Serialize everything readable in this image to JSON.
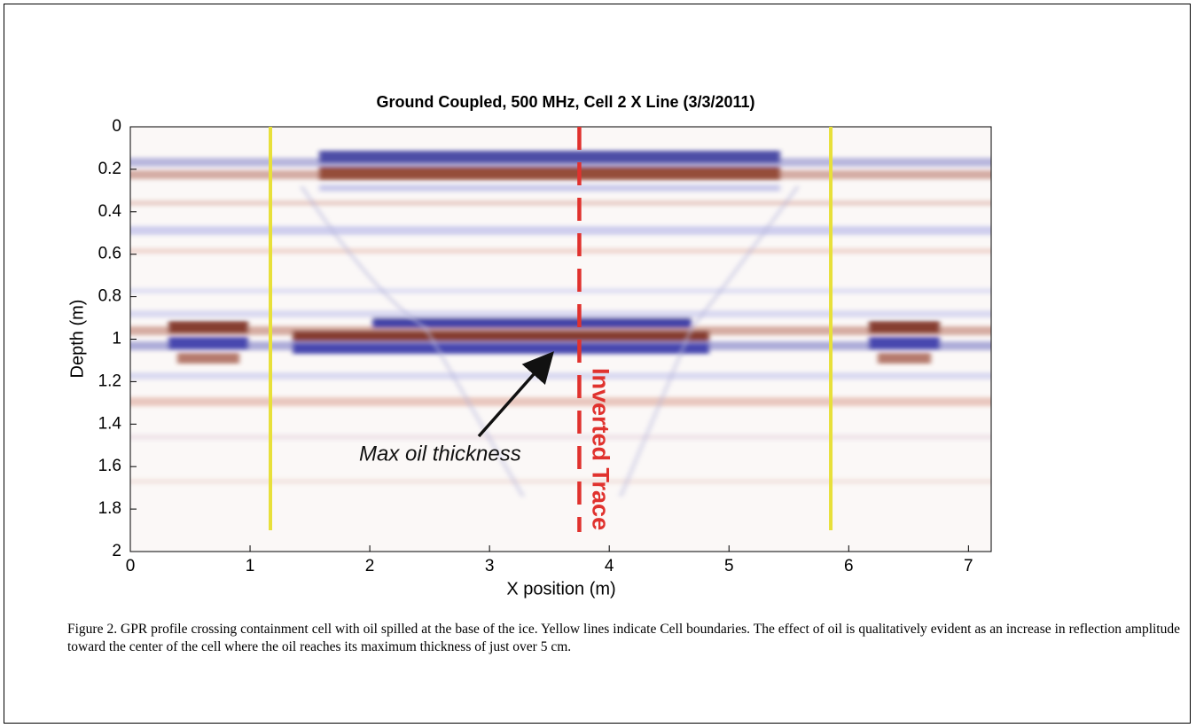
{
  "chart_data": {
    "type": "radargram",
    "title": "Ground Coupled, 500 MHz, Cell 2 X Line (3/3/2011)",
    "x_label": "X position (m)",
    "y_label": "Depth (m)",
    "xlim": [
      0,
      7.19
    ],
    "ylim": [
      0,
      2
    ],
    "y_inverted": true,
    "xticks": [
      0,
      1,
      2,
      3,
      4,
      5,
      6,
      7
    ],
    "yticks": [
      0,
      0.2,
      0.4,
      0.6,
      0.8,
      1,
      1.2,
      1.4,
      1.6,
      1.8,
      2
    ],
    "boundary_lines": {
      "color": "#e8e03a",
      "x": [
        1.17,
        5.85
      ],
      "depth_end": 1.9
    },
    "inverted_trace": {
      "label": "Inverted Trace",
      "color": "#e0322e",
      "x": 3.75
    },
    "annotation": "Max oil thickness"
  },
  "caption": "Figure 2.  GPR profile crossing containment cell with oil spilled at the base of the ice.  Yellow lines indicate Cell boundaries.  The effect of oil is qualitatively evident as an increase in reflection amplitude toward the center of the cell where the oil reaches its maximum thickness of just over 5 cm."
}
